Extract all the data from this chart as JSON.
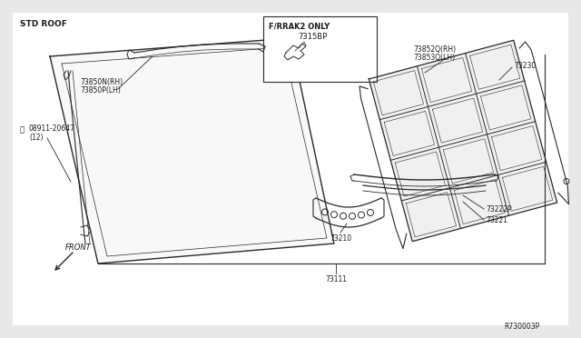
{
  "bg_color": "#ffffff",
  "outer_bg": "#e8e8e8",
  "std_roof_label": "STD ROOF",
  "f_rrake2_label": "F/RRAK2 ONLY",
  "part_7315bp": "7315BP",
  "part_73850n_rh": "73850N(RH)",
  "part_73850p_lh": "73850P(LH)",
  "part_08911": "08911-20647",
  "part_08911_qty": "(12)",
  "part_73852q_rh": "73852Q(RH)",
  "part_73853q_lh": "73853Q(LH)",
  "part_73230": "73230",
  "part_73222p": "73222P",
  "part_73221": "73221",
  "part_73210": "73210",
  "part_73111": "73111",
  "front_label": "FRONT",
  "ref_label": "R730003P",
  "line_color": "#2a2a2a",
  "text_color": "#1a1a1a"
}
